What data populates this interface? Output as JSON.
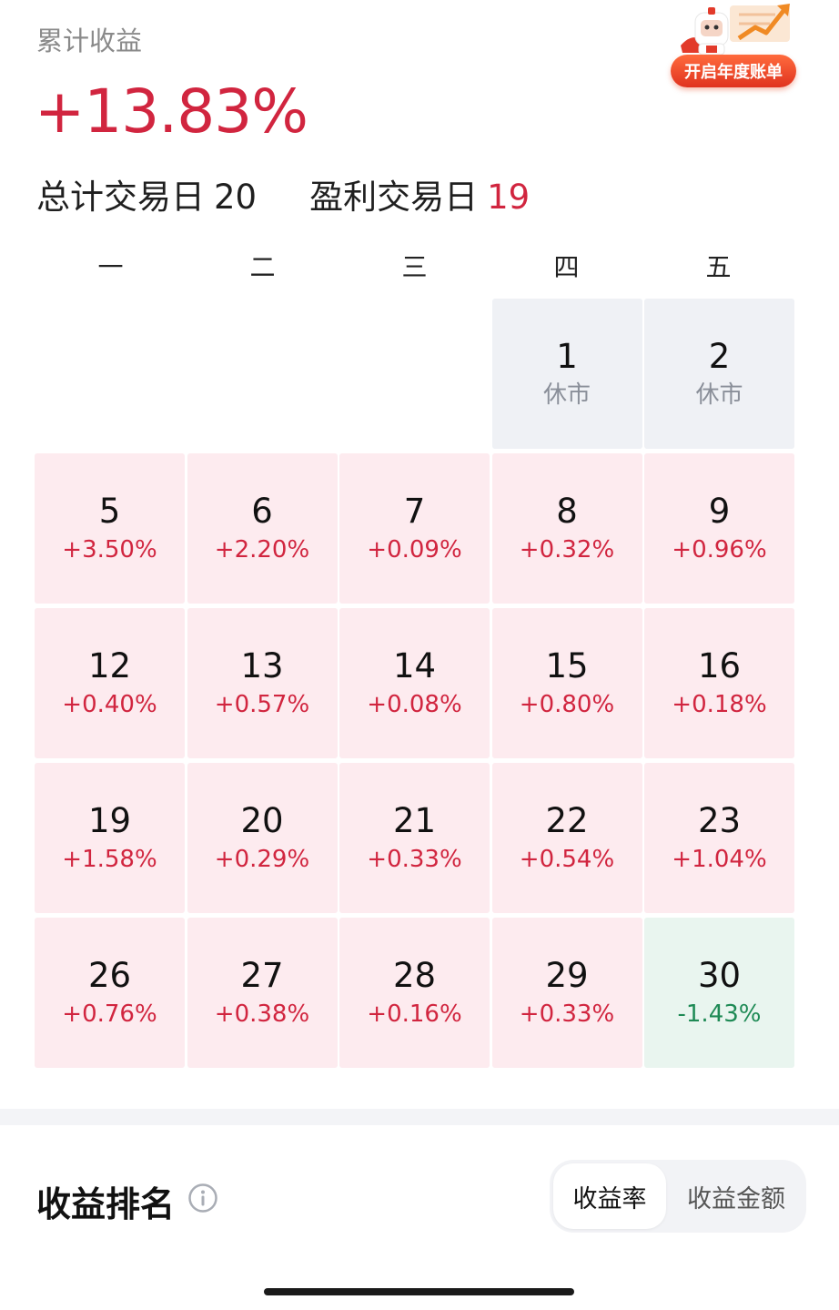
{
  "header": {
    "label": "累计收益",
    "total_return": "+13.83%",
    "stats": [
      {
        "label": "总计交易日",
        "value": "20",
        "highlight": false
      },
      {
        "label": "盈利交易日",
        "value": "19",
        "highlight": true
      }
    ]
  },
  "promo": {
    "label": "开启年度账单",
    "icon": "mascot-rocket-icon"
  },
  "calendar": {
    "weekdays": [
      "一",
      "二",
      "三",
      "四",
      "五"
    ],
    "cells": [
      {
        "day": "",
        "value": "",
        "state": "empty"
      },
      {
        "day": "",
        "value": "",
        "state": "empty"
      },
      {
        "day": "",
        "value": "",
        "state": "empty"
      },
      {
        "day": "1",
        "value": "休市",
        "state": "closed"
      },
      {
        "day": "2",
        "value": "休市",
        "state": "closed"
      },
      {
        "day": "5",
        "value": "+3.50%",
        "state": "up"
      },
      {
        "day": "6",
        "value": "+2.20%",
        "state": "up"
      },
      {
        "day": "7",
        "value": "+0.09%",
        "state": "up"
      },
      {
        "day": "8",
        "value": "+0.32%",
        "state": "up"
      },
      {
        "day": "9",
        "value": "+0.96%",
        "state": "up"
      },
      {
        "day": "12",
        "value": "+0.40%",
        "state": "up"
      },
      {
        "day": "13",
        "value": "+0.57%",
        "state": "up"
      },
      {
        "day": "14",
        "value": "+0.08%",
        "state": "up"
      },
      {
        "day": "15",
        "value": "+0.80%",
        "state": "up"
      },
      {
        "day": "16",
        "value": "+0.18%",
        "state": "up"
      },
      {
        "day": "19",
        "value": "+1.58%",
        "state": "up"
      },
      {
        "day": "20",
        "value": "+0.29%",
        "state": "up"
      },
      {
        "day": "21",
        "value": "+0.33%",
        "state": "up"
      },
      {
        "day": "22",
        "value": "+0.54%",
        "state": "up"
      },
      {
        "day": "23",
        "value": "+1.04%",
        "state": "up"
      },
      {
        "day": "26",
        "value": "+0.76%",
        "state": "up"
      },
      {
        "day": "27",
        "value": "+0.38%",
        "state": "up"
      },
      {
        "day": "28",
        "value": "+0.16%",
        "state": "up"
      },
      {
        "day": "29",
        "value": "+0.33%",
        "state": "up"
      },
      {
        "day": "30",
        "value": "-1.43%",
        "state": "down"
      }
    ]
  },
  "ranking": {
    "title": "收益排名",
    "info_icon": "info-icon",
    "toggle": {
      "active": "收益率",
      "inactive": "收益金额"
    }
  },
  "colors": {
    "up": "#d1253f",
    "down": "#1e8a55",
    "up_bg": "#fdebef",
    "down_bg": "#e9f5ef",
    "closed_bg": "#eff1f5"
  }
}
